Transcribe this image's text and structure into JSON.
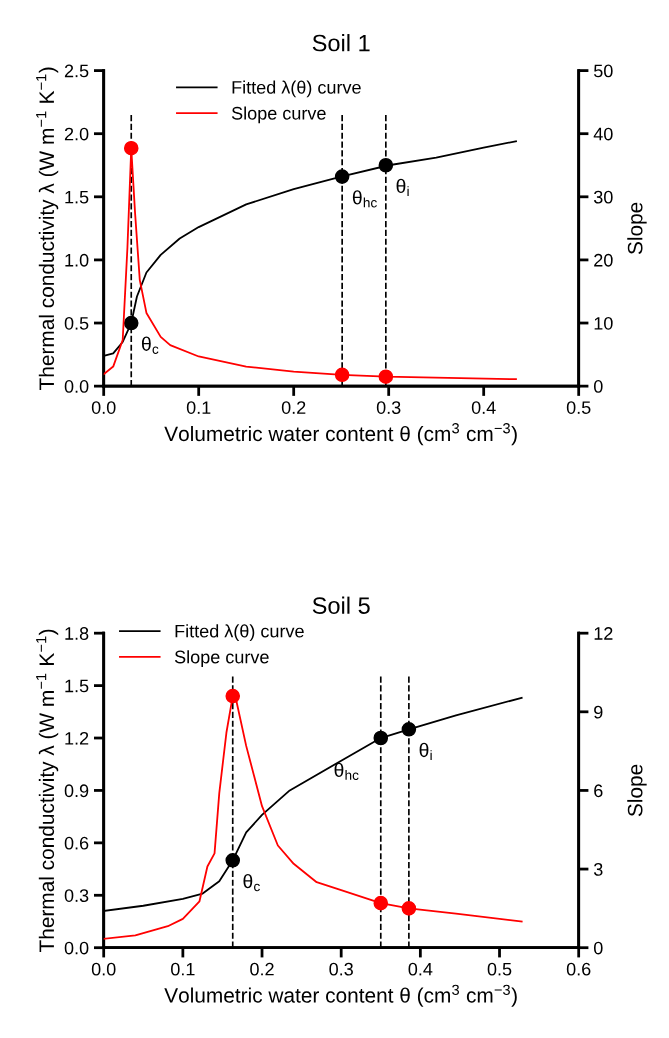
{
  "chart_data": [
    {
      "type": "line",
      "title": "Soil 1",
      "xlabel": "Volumetric water content θ (cm$^{3}$ cm$^{−3}$)",
      "ylabel": "Thermal conductivity λ (W m$^{−1}$ K$^{−1}$)",
      "y2label": "Slope",
      "xlim": [
        0.0,
        0.5
      ],
      "xticks": [
        {
          "value": 0,
          "label": "0.0"
        },
        0.1,
        0.2,
        0.3,
        0.4,
        0.5
      ],
      "ylim": [
        0.0,
        2.5
      ],
      "yticks": [
        {
          "value": 0,
          "label": "0.0"
        },
        0.5,
        {
          "value": 1,
          "label": "1.0"
        },
        1.5,
        {
          "value": 2,
          "label": "2.0"
        },
        2.5
      ],
      "y2lim": [
        0,
        50
      ],
      "y2ticks": [
        0,
        10,
        20,
        30,
        40,
        50
      ],
      "grid": false,
      "legend": "top left",
      "series": [
        {
          "name": "Fitted λ(θ) curve",
          "color": "#000000",
          "x": [
            0,
            0.01,
            0.02,
            0.029,
            0.035,
            0.045,
            0.06,
            0.08,
            0.1,
            0.15,
            0.2,
            0.25,
            0.3,
            0.35,
            0.4,
            0.434
          ],
          "values": [
            0.24,
            0.26,
            0.35,
            0.5,
            0.71,
            0.9,
            1.04,
            1.17,
            1.26,
            1.44,
            1.56,
            1.66,
            1.75,
            1.81,
            1.89,
            1.94
          ]
        },
        {
          "name": "Slope curve",
          "axis": "y2",
          "color": "#ff0000",
          "x": [
            0,
            0.01,
            0.02,
            0.025,
            0.029,
            0.033,
            0.038,
            0.045,
            0.06,
            0.07,
            0.1,
            0.15,
            0.2,
            0.251,
            0.297,
            0.434
          ],
          "values": [
            1.9,
            3.1,
            7.3,
            22,
            37.7,
            27.5,
            16.8,
            11.6,
            7.8,
            6.5,
            4.7,
            3.1,
            2.3,
            1.8,
            1.5,
            1.1
          ]
        },
        {
          "type": "scatter",
          "marker": "circle",
          "color": "#000000",
          "x": [
            0.029,
            0.251,
            0.297
          ],
          "values": [
            0.5,
            1.66,
            1.75
          ]
        },
        {
          "type": "scatter",
          "marker": "circle",
          "axis": "y2",
          "color": "#ff0000",
          "x": [
            0.029,
            0.251,
            0.297
          ],
          "values": [
            37.7,
            1.8,
            1.5
          ]
        }
      ],
      "ref_lines": [
        {
          "axis": "x",
          "value": 0.029,
          "line_style": "dashed",
          "color": "#000000"
        },
        {
          "axis": "x",
          "value": 0.251,
          "line_style": "dashed",
          "color": "#000000"
        },
        {
          "axis": "x",
          "value": 0.297,
          "line_style": "dashed",
          "color": "#000000"
        }
      ],
      "annotations": [
        {
          "text": "θ$_{c}$",
          "x": 0.029,
          "y": 0.5
        },
        {
          "text": "θ$_{hc}$",
          "x": 0.251,
          "y": 1.66
        },
        {
          "text": "θ$_{i}$",
          "x": 0.297,
          "y": 1.75
        }
      ]
    },
    {
      "type": "line",
      "title": "Soil 5",
      "xlabel": "Volumetric water content θ (cm$^{3}$ cm$^{−3}$)",
      "ylabel": "Thermal conductivity λ (W m$^{−1}$ K$^{−1}$)",
      "y2label": "Slope",
      "xlim": [
        0.0,
        0.6
      ],
      "xticks": [
        {
          "value": 0,
          "label": "0.0"
        },
        0.1,
        0.2,
        0.3,
        0.4,
        0.5,
        0.6
      ],
      "ylim": [
        0.0,
        1.8
      ],
      "yticks": [
        {
          "value": 0,
          "label": "0.0"
        },
        0.3,
        0.6,
        0.9,
        1.2,
        1.5,
        1.8
      ],
      "y2lim": [
        0,
        12
      ],
      "y2ticks": [
        0,
        3,
        6,
        9,
        12
      ],
      "grid": false,
      "legend": "top left",
      "series": [
        {
          "name": "Fitted λ(θ) curve",
          "color": "#000000",
          "x": [
            0,
            0.05,
            0.1,
            0.125,
            0.146,
            0.163,
            0.18,
            0.2,
            0.235,
            0.3,
            0.35,
            0.3855,
            0.445,
            0.528
          ],
          "values": [
            0.21,
            0.24,
            0.28,
            0.31,
            0.38,
            0.5,
            0.66,
            0.76,
            0.9,
            1.07,
            1.2,
            1.25,
            1.33,
            1.43
          ]
        },
        {
          "name": "Slope curve",
          "axis": "y2",
          "color": "#ff0000",
          "x": [
            0,
            0.04,
            0.081,
            0.1,
            0.121,
            0.131,
            0.14,
            0.146,
            0.155,
            0.163,
            0.167,
            0.18,
            0.2,
            0.22,
            0.24,
            0.269,
            0.3,
            0.35,
            0.3855,
            0.445,
            0.528
          ],
          "values": [
            0.34,
            0.47,
            0.82,
            1.1,
            1.77,
            3.1,
            3.6,
            5.9,
            8.2,
            9.6,
            9.5,
            7.7,
            5.4,
            3.9,
            3.2,
            2.5,
            2.2,
            1.7,
            1.5,
            1.3,
            1.0
          ]
        },
        {
          "type": "scatter",
          "marker": "circle",
          "color": "#000000",
          "x": [
            0.163,
            0.35,
            0.3855
          ],
          "values": [
            0.5,
            1.2,
            1.25
          ]
        },
        {
          "type": "scatter",
          "marker": "circle",
          "axis": "y2",
          "color": "#ff0000",
          "x": [
            0.163,
            0.35,
            0.3855
          ],
          "values": [
            9.6,
            1.7,
            1.5
          ]
        }
      ],
      "ref_lines": [
        {
          "axis": "x",
          "value": 0.163,
          "line_style": "dashed",
          "color": "#000000"
        },
        {
          "axis": "x",
          "value": 0.35,
          "line_style": "dashed",
          "color": "#000000"
        },
        {
          "axis": "x",
          "value": 0.3855,
          "line_style": "dashed",
          "color": "#000000"
        }
      ],
      "annotations": [
        {
          "text": "θ$_{c}$",
          "x": 0.163,
          "y": 0.5
        },
        {
          "text": "θ$_{hc}$",
          "x": 0.35,
          "y": 1.2
        },
        {
          "text": "θ$_{i}$",
          "x": 0.3855,
          "y": 1.25
        }
      ]
    }
  ]
}
